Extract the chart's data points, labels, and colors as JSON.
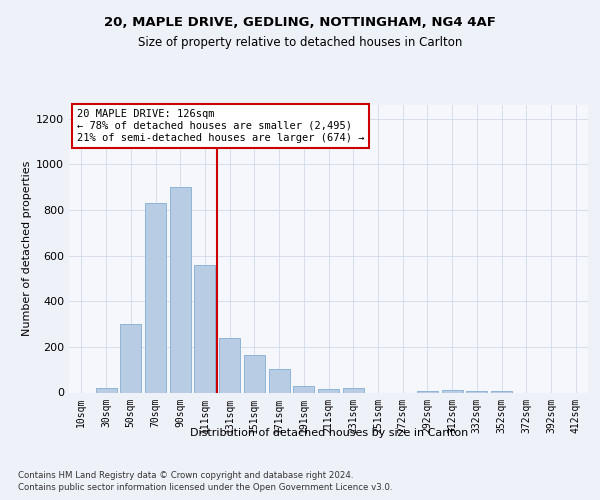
{
  "title1": "20, MAPLE DRIVE, GEDLING, NOTTINGHAM, NG4 4AF",
  "title2": "Size of property relative to detached houses in Carlton",
  "xlabel": "Distribution of detached houses by size in Carlton",
  "ylabel": "Number of detached properties",
  "categories": [
    "10sqm",
    "30sqm",
    "50sqm",
    "70sqm",
    "90sqm",
    "111sqm",
    "131sqm",
    "151sqm",
    "171sqm",
    "191sqm",
    "211sqm",
    "231sqm",
    "251sqm",
    "272sqm",
    "292sqm",
    "312sqm",
    "332sqm",
    "352sqm",
    "372sqm",
    "392sqm",
    "412sqm"
  ],
  "values": [
    0,
    20,
    300,
    830,
    900,
    560,
    240,
    165,
    105,
    30,
    15,
    20,
    0,
    0,
    8,
    10,
    5,
    5,
    0,
    0,
    0
  ],
  "bar_color": "#b8cce4",
  "bar_edge_color": "#8db4d8",
  "vline_color": "#cc0000",
  "annotation_text": "20 MAPLE DRIVE: 126sqm\n← 78% of detached houses are smaller (2,495)\n21% of semi-detached houses are larger (674) →",
  "annotation_box_color": "#ffffff",
  "annotation_box_edge": "#cc0000",
  "ylim": [
    0,
    1260
  ],
  "yticks": [
    0,
    200,
    400,
    600,
    800,
    1000,
    1200
  ],
  "footer1": "Contains HM Land Registry data © Crown copyright and database right 2024.",
  "footer2": "Contains public sector information licensed under the Open Government Licence v3.0.",
  "bg_color": "#eef2f8",
  "plot_bg_color": "#f5f7fc",
  "grid_color": "#d0d8e8"
}
